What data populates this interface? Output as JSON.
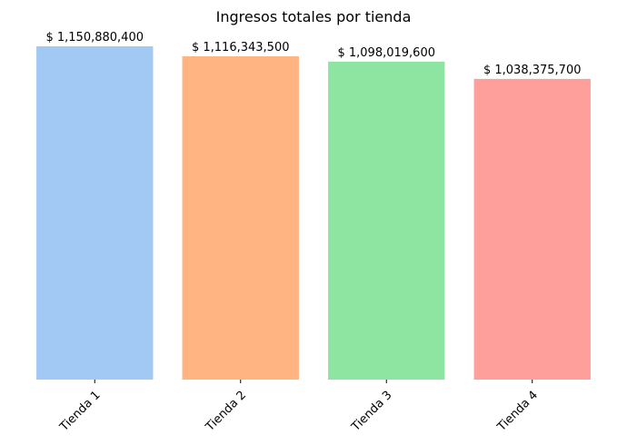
{
  "chart_data": {
    "type": "bar",
    "title": "Ingresos totales por tienda",
    "xlabel": "",
    "ylabel": "",
    "categories": [
      "Tienda 1",
      "Tienda 2",
      "Tienda 3",
      "Tienda 4"
    ],
    "values": [
      1150880400,
      1116343500,
      1098019600,
      1038375700
    ],
    "data_labels": [
      "$ 1,150,880,400",
      "$ 1,116,343,500",
      "$ 1,098,019,600",
      "$ 1,038,375,700"
    ],
    "colors": [
      "#a1c9f4",
      "#ffb482",
      "#8de5a1",
      "#ff9f9b"
    ],
    "ylim": [
      0,
      1150880400
    ],
    "grid": false,
    "y_axis_visible": false,
    "x_tick_rotation": 45
  }
}
